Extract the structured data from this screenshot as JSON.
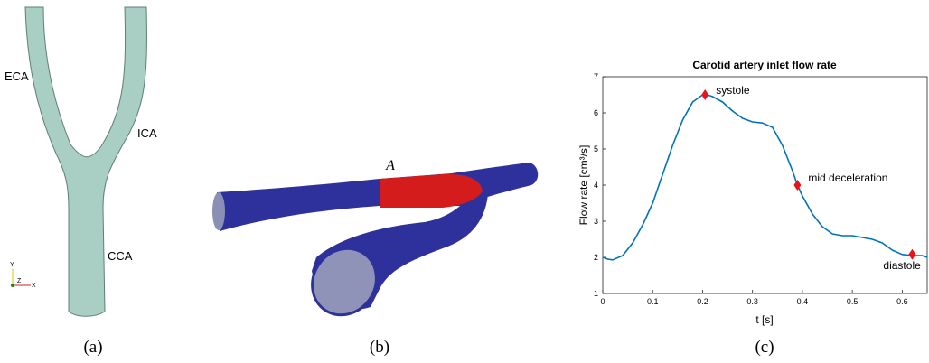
{
  "figure": {
    "panel_a": {
      "caption": "(a)",
      "labels": [
        "ECA",
        "ICA",
        "CCA"
      ],
      "axes": [
        "Y",
        "Z",
        "X"
      ]
    },
    "panel_b": {
      "caption": "(b)",
      "label": "A"
    },
    "panel_c": {
      "caption": "(c)"
    }
  },
  "chart_data": {
    "type": "line",
    "title": "Carotid artery inlet flow rate",
    "xlabel": "t [s]",
    "ylabel": "Flow rate [cm³/s]",
    "xlim": [
      0,
      0.65
    ],
    "xticks": [
      0,
      0.1,
      0.2,
      0.3,
      0.4,
      0.5,
      0.6
    ],
    "ylim": [
      1,
      7
    ],
    "yticks": [
      1,
      2,
      3,
      4,
      5,
      6,
      7
    ],
    "series": [
      {
        "color": "#0072bd",
        "x": [
          0,
          0.01,
          0.02,
          0.04,
          0.06,
          0.08,
          0.1,
          0.12,
          0.14,
          0.16,
          0.18,
          0.2,
          0.21,
          0.22,
          0.24,
          0.26,
          0.28,
          0.3,
          0.32,
          0.34,
          0.36,
          0.38,
          0.39,
          0.4,
          0.42,
          0.44,
          0.46,
          0.48,
          0.5,
          0.52,
          0.54,
          0.56,
          0.58,
          0.6,
          0.62,
          0.64,
          0.65
        ],
        "values": [
          2.0,
          1.95,
          1.93,
          2.05,
          2.4,
          2.9,
          3.5,
          4.3,
          5.1,
          5.8,
          6.3,
          6.5,
          6.5,
          6.45,
          6.3,
          6.05,
          5.85,
          5.75,
          5.72,
          5.6,
          5.1,
          4.4,
          4.0,
          3.7,
          3.2,
          2.85,
          2.65,
          2.6,
          2.6,
          2.55,
          2.5,
          2.4,
          2.2,
          2.08,
          2.05,
          2.05,
          2.0
        ]
      }
    ],
    "markers": [
      {
        "name": "systole",
        "x": 0.205,
        "y": 6.5
      },
      {
        "name": "mid deceleration",
        "x": 0.39,
        "y": 4.0
      },
      {
        "name": "diastole",
        "x": 0.62,
        "y": 2.08
      }
    ],
    "marker_color": "#e8141b"
  }
}
